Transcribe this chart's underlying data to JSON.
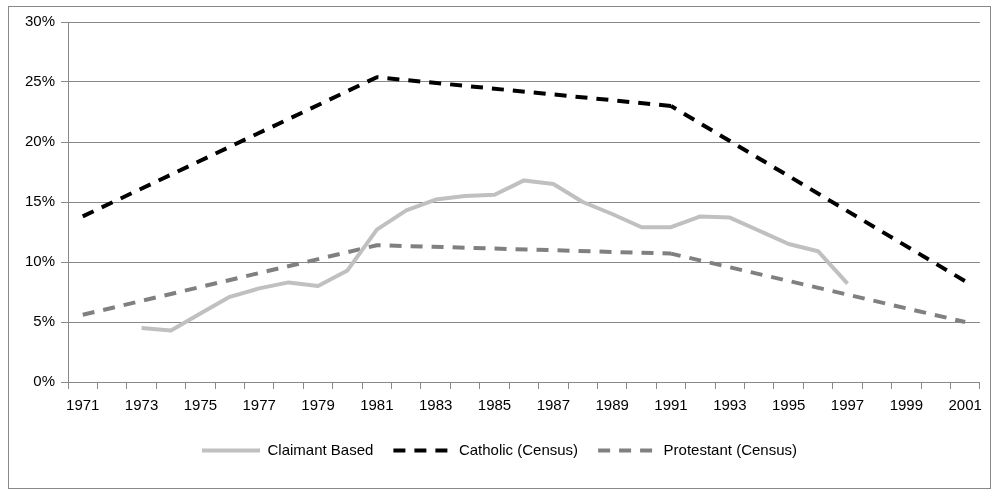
{
  "chart_data": {
    "type": "line",
    "categories": [
      "1971",
      null,
      "1973",
      null,
      "1975",
      null,
      "1977",
      null,
      "1979",
      null,
      "1981",
      null,
      "1983",
      null,
      "1985",
      null,
      "1987",
      null,
      "1989",
      null,
      "1991",
      null,
      "1993",
      null,
      "1995",
      null,
      "1997",
      null,
      "1999",
      null,
      "2001"
    ],
    "series": [
      {
        "name": "Claimant Based",
        "color": "#c0c0c0",
        "line_style": "solid",
        "values": [
          null,
          null,
          4.5,
          4.3,
          5.7,
          7.1,
          7.8,
          8.3,
          8.0,
          9.3,
          12.7,
          14.3,
          15.2,
          15.5,
          15.6,
          16.8,
          16.5,
          15.0,
          14.0,
          12.9,
          12.9,
          13.8,
          13.7,
          12.6,
          11.5,
          10.9,
          8.2,
          null,
          null,
          null,
          null
        ]
      },
      {
        "name": "Catholic (Census)",
        "color": "#000000",
        "line_style": "dashed",
        "values": [
          13.8,
          null,
          null,
          null,
          null,
          null,
          null,
          null,
          null,
          null,
          25.4,
          null,
          null,
          null,
          null,
          null,
          null,
          null,
          null,
          null,
          23.0,
          null,
          null,
          null,
          null,
          null,
          null,
          null,
          null,
          null,
          8.4
        ]
      },
      {
        "name": "Protestant (Census)",
        "color": "#808080",
        "line_style": "dashed",
        "values": [
          5.6,
          null,
          null,
          null,
          null,
          null,
          null,
          null,
          null,
          null,
          11.4,
          null,
          null,
          null,
          null,
          null,
          null,
          null,
          null,
          null,
          10.7,
          null,
          null,
          null,
          null,
          null,
          null,
          null,
          null,
          null,
          5.0
        ]
      }
    ],
    "ylim": [
      0,
      30
    ],
    "yticks": [
      {
        "value": 0,
        "label": "0%"
      },
      {
        "value": 5,
        "label": "5%"
      },
      {
        "value": 10,
        "label": "10%"
      },
      {
        "value": 15,
        "label": "15%"
      },
      {
        "value": 20,
        "label": "20%"
      },
      {
        "value": 25,
        "label": "25%"
      },
      {
        "value": 30,
        "label": "30%"
      }
    ],
    "grid": "y",
    "legend": "bottom",
    "marker": "none"
  }
}
